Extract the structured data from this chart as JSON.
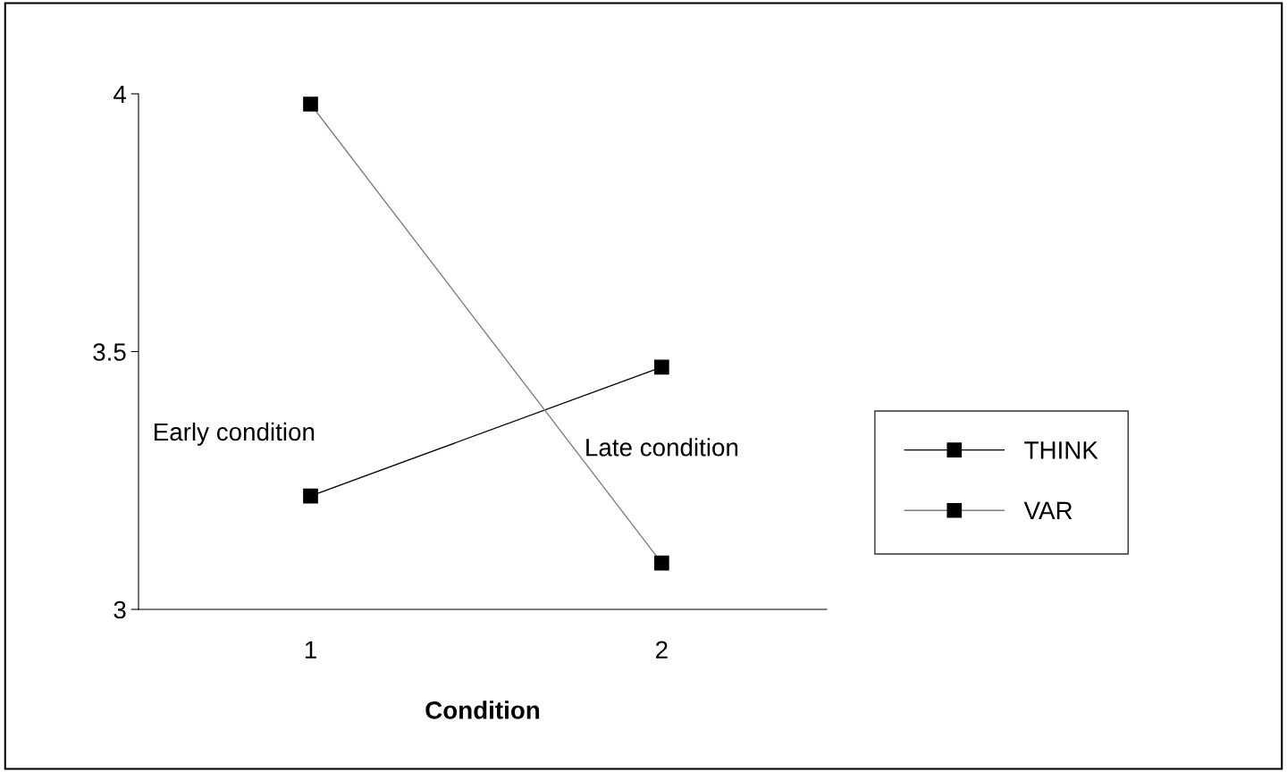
{
  "chart_data": {
    "type": "line",
    "xlabel": "Condition",
    "categories": [
      "1",
      "2"
    ],
    "series": [
      {
        "name": "THINK",
        "color": "#000000",
        "values": [
          3.22,
          3.47
        ]
      },
      {
        "name": "VAR",
        "color": "#808080",
        "values": [
          3.98,
          3.09
        ]
      }
    ],
    "ylim": [
      3,
      4
    ],
    "yticks": [
      3,
      {
        "value": 3.5,
        "label": "3.5"
      },
      4
    ],
    "annotations": [
      "Early condition",
      "Late condition"
    ],
    "marker": "square",
    "grid": false,
    "legend": "right"
  }
}
